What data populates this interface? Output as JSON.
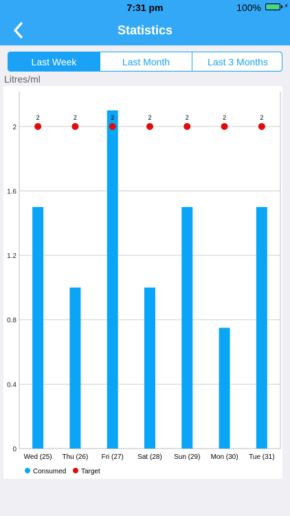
{
  "status_bar": {
    "time": "7:31 pm",
    "battery": "100%"
  },
  "nav": {
    "title": "Statistics"
  },
  "tabs": [
    {
      "label": "Last Week",
      "active": true
    },
    {
      "label": "Last Month",
      "active": false
    },
    {
      "label": "Last 3 Months",
      "active": false
    }
  ],
  "colors": {
    "accent": "#1aa2f6",
    "bar": "#0aa5f6",
    "target": "#e10b0b"
  },
  "chart_data": {
    "type": "bar",
    "ylabel": "Litres/ml",
    "categories": [
      "Wed (25)",
      "Thu (26)",
      "Fri (27)",
      "Sat (28)",
      "Sun (29)",
      "Mon (30)",
      "Tue (31)"
    ],
    "series": [
      {
        "name": "Consumed",
        "type": "bar",
        "values": [
          1.5,
          1.0,
          2.1,
          1.0,
          1.5,
          0.75,
          1.5
        ]
      },
      {
        "name": "Target",
        "type": "scatter",
        "values": [
          2,
          2,
          2,
          2,
          2,
          2,
          2
        ],
        "labels": [
          "2",
          "2",
          "2",
          "2",
          "2",
          "2",
          "2"
        ]
      }
    ],
    "ylim": [
      0,
      2.2
    ],
    "yticks": [
      "0",
      "0.4",
      "0.8",
      "1.2",
      "1.6",
      "2"
    ],
    "ytick_values": [
      0,
      0.4,
      0.8,
      1.2,
      1.6,
      2.0
    ],
    "grid": true,
    "legend_position": "bottom-left"
  }
}
